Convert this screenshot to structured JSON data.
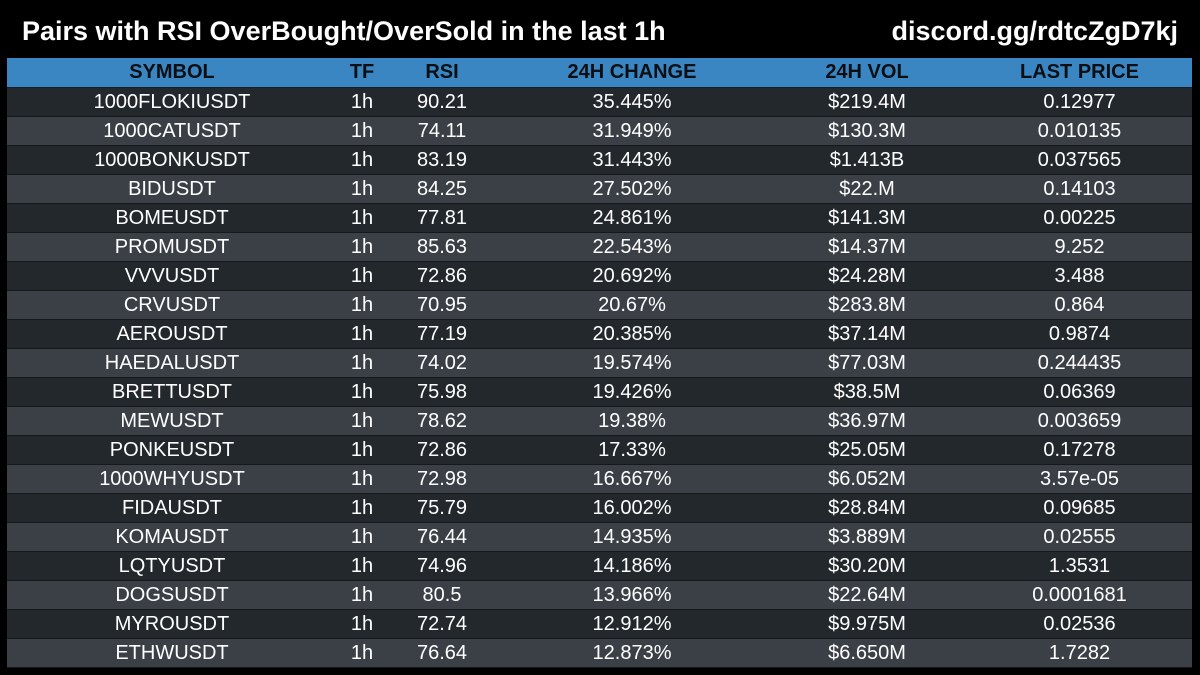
{
  "header": {
    "title": "Pairs with RSI OverBought/OverSold in the last 1h",
    "link": "discord.gg/rdtcZgD7kj"
  },
  "colors": {
    "background": "#000000",
    "header_row": "#3a86c2",
    "row_dark": "#23282c",
    "row_light": "#3a4046"
  },
  "table": {
    "columns": [
      "SYMBOL",
      "TF",
      "RSI",
      "24H CHANGE",
      "24H VOL",
      "LAST PRICE"
    ],
    "rows": [
      [
        "1000FLOKIUSDT",
        "1h",
        "90.21",
        "35.445%",
        "$219.4M",
        "0.12977"
      ],
      [
        "1000CATUSDT",
        "1h",
        "74.11",
        "31.949%",
        "$130.3M",
        "0.010135"
      ],
      [
        "1000BONKUSDT",
        "1h",
        "83.19",
        "31.443%",
        "$1.413B",
        "0.037565"
      ],
      [
        "BIDUSDT",
        "1h",
        "84.25",
        "27.502%",
        "$22.M",
        "0.14103"
      ],
      [
        "BOMEUSDT",
        "1h",
        "77.81",
        "24.861%",
        "$141.3M",
        "0.00225"
      ],
      [
        "PROMUSDT",
        "1h",
        "85.63",
        "22.543%",
        "$14.37M",
        "9.252"
      ],
      [
        "VVVUSDT",
        "1h",
        "72.86",
        "20.692%",
        "$24.28M",
        "3.488"
      ],
      [
        "CRVUSDT",
        "1h",
        "70.95",
        "20.67%",
        "$283.8M",
        "0.864"
      ],
      [
        "AEROUSDT",
        "1h",
        "77.19",
        "20.385%",
        "$37.14M",
        "0.9874"
      ],
      [
        "HAEDALUSDT",
        "1h",
        "74.02",
        "19.574%",
        "$77.03M",
        "0.244435"
      ],
      [
        "BRETTUSDT",
        "1h",
        "75.98",
        "19.426%",
        "$38.5M",
        "0.06369"
      ],
      [
        "MEWUSDT",
        "1h",
        "78.62",
        "19.38%",
        "$36.97M",
        "0.003659"
      ],
      [
        "PONKEUSDT",
        "1h",
        "72.86",
        "17.33%",
        "$25.05M",
        "0.17278"
      ],
      [
        "1000WHYUSDT",
        "1h",
        "72.98",
        "16.667%",
        "$6.052M",
        "3.57e-05"
      ],
      [
        "FIDAUSDT",
        "1h",
        "75.79",
        "16.002%",
        "$28.84M",
        "0.09685"
      ],
      [
        "KOMAUSDT",
        "1h",
        "76.44",
        "14.935%",
        "$3.889M",
        "0.02555"
      ],
      [
        "LQTYUSDT",
        "1h",
        "74.96",
        "14.186%",
        "$30.20M",
        "1.3531"
      ],
      [
        "DOGSUSDT",
        "1h",
        "80.5",
        "13.966%",
        "$22.64M",
        "0.0001681"
      ],
      [
        "MYROUSDT",
        "1h",
        "72.74",
        "12.912%",
        "$9.975M",
        "0.02536"
      ],
      [
        "ETHWUSDT",
        "1h",
        "76.64",
        "12.873%",
        "$6.650M",
        "1.7282"
      ]
    ]
  }
}
